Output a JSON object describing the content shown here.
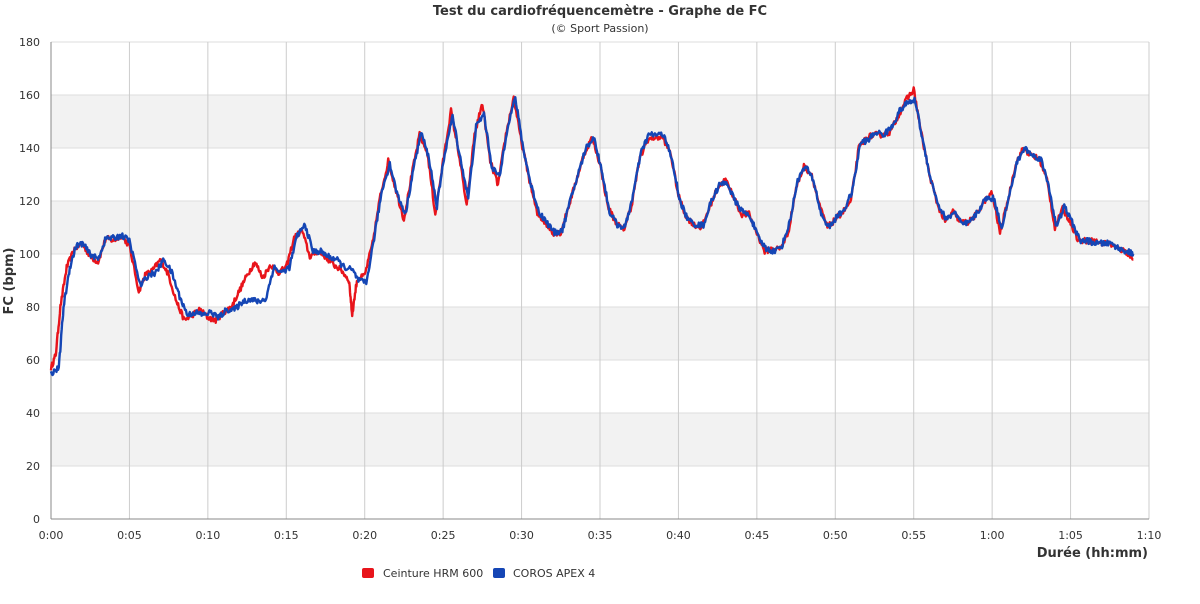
{
  "chart_data": {
    "type": "line",
    "title": "Test du cardiofréquencemètre - Graphe de FC",
    "subtitle": "(© Sport Passion)",
    "xlabel": "Durée (hh:mm)",
    "ylabel": "FC (bpm)",
    "xlim": [
      0,
      70
    ],
    "ylim": [
      0,
      180
    ],
    "x_ticks": [
      0,
      5,
      10,
      15,
      20,
      25,
      30,
      35,
      40,
      45,
      50,
      55,
      60,
      65,
      70
    ],
    "x_tick_labels": [
      "0:00",
      "0:05",
      "0:10",
      "0:15",
      "0:20",
      "0:25",
      "0:30",
      "0:35",
      "0:40",
      "0:45",
      "0:50",
      "0:55",
      "1:00",
      "1:05",
      "1:10"
    ],
    "y_ticks": [
      0,
      20,
      40,
      60,
      80,
      100,
      120,
      140,
      160,
      180
    ],
    "y_tick_labels": [
      "0",
      "20",
      "40",
      "60",
      "80",
      "100",
      "120",
      "140",
      "160",
      "180"
    ],
    "grid": true,
    "legend_position": "bottom-left",
    "series": [
      {
        "name": "Ceinture HRM 600",
        "color": "#e8141b",
        "points": [
          [
            0,
            57
          ],
          [
            0.3,
            62
          ],
          [
            0.6,
            80
          ],
          [
            1,
            95
          ],
          [
            1.5,
            102
          ],
          [
            2,
            104
          ],
          [
            2.5,
            99
          ],
          [
            3,
            97
          ],
          [
            3.5,
            106
          ],
          [
            4,
            105
          ],
          [
            4.5,
            107
          ],
          [
            5,
            103
          ],
          [
            5.6,
            86
          ],
          [
            6,
            92
          ],
          [
            6.5,
            94
          ],
          [
            7,
            98
          ],
          [
            7.5,
            92
          ],
          [
            8,
            82
          ],
          [
            8.5,
            75
          ],
          [
            9,
            77
          ],
          [
            9.5,
            79
          ],
          [
            10,
            76
          ],
          [
            10.5,
            75
          ],
          [
            11,
            78
          ],
          [
            11.5,
            80
          ],
          [
            12,
            86
          ],
          [
            12.5,
            92
          ],
          [
            13,
            97
          ],
          [
            13.5,
            91
          ],
          [
            14,
            96
          ],
          [
            14.5,
            93
          ],
          [
            15,
            95
          ],
          [
            15.5,
            106
          ],
          [
            16,
            109
          ],
          [
            16.5,
            99
          ],
          [
            17,
            101
          ],
          [
            17.5,
            99
          ],
          [
            18,
            96
          ],
          [
            18.5,
            94
          ],
          [
            19,
            90
          ],
          [
            19.2,
            77
          ],
          [
            19.5,
            90
          ],
          [
            20,
            92
          ],
          [
            20.5,
            104
          ],
          [
            21,
            122
          ],
          [
            21.5,
            135
          ],
          [
            22,
            124
          ],
          [
            22.5,
            113
          ],
          [
            23,
            130
          ],
          [
            23.5,
            145
          ],
          [
            24,
            138
          ],
          [
            24.5,
            115
          ],
          [
            25,
            135
          ],
          [
            25.5,
            154
          ],
          [
            26,
            138
          ],
          [
            26.5,
            118
          ],
          [
            27,
            145
          ],
          [
            27.5,
            157
          ],
          [
            28,
            135
          ],
          [
            28.5,
            126
          ],
          [
            29,
            145
          ],
          [
            29.5,
            159
          ],
          [
            30,
            142
          ],
          [
            30.5,
            128
          ],
          [
            31,
            115
          ],
          [
            31.5,
            112
          ],
          [
            32,
            108
          ],
          [
            32.5,
            108
          ],
          [
            33,
            118
          ],
          [
            33.5,
            128
          ],
          [
            34,
            138
          ],
          [
            34.5,
            144
          ],
          [
            35,
            134
          ],
          [
            35.5,
            118
          ],
          [
            36,
            112
          ],
          [
            36.5,
            109
          ],
          [
            37,
            118
          ],
          [
            37.5,
            135
          ],
          [
            38,
            143
          ],
          [
            38.5,
            144
          ],
          [
            39,
            144
          ],
          [
            39.5,
            138
          ],
          [
            40,
            122
          ],
          [
            40.5,
            114
          ],
          [
            41,
            111
          ],
          [
            41.5,
            110
          ],
          [
            42,
            118
          ],
          [
            42.5,
            125
          ],
          [
            43,
            128
          ],
          [
            43.5,
            122
          ],
          [
            44,
            115
          ],
          [
            44.5,
            115
          ],
          [
            45,
            108
          ],
          [
            45.5,
            101
          ],
          [
            46,
            102
          ],
          [
            46.5,
            102
          ],
          [
            47,
            108
          ],
          [
            47.5,
            125
          ],
          [
            48,
            133
          ],
          [
            48.5,
            130
          ],
          [
            49,
            118
          ],
          [
            49.5,
            110
          ],
          [
            50,
            113
          ],
          [
            50.5,
            116
          ],
          [
            51,
            120
          ],
          [
            51.5,
            140
          ],
          [
            52,
            144
          ],
          [
            52.5,
            145
          ],
          [
            53,
            145
          ],
          [
            53.5,
            146
          ],
          [
            54,
            152
          ],
          [
            54.5,
            158
          ],
          [
            55,
            162
          ],
          [
            55.5,
            145
          ],
          [
            56,
            130
          ],
          [
            56.5,
            119
          ],
          [
            57,
            112
          ],
          [
            57.5,
            116
          ],
          [
            58,
            112
          ],
          [
            58.5,
            112
          ],
          [
            59,
            115
          ],
          [
            59.5,
            120
          ],
          [
            60,
            123
          ],
          [
            60.5,
            108
          ],
          [
            61,
            120
          ],
          [
            61.5,
            134
          ],
          [
            62,
            140
          ],
          [
            62.5,
            137
          ],
          [
            63,
            136
          ],
          [
            63.5,
            128
          ],
          [
            64,
            110
          ],
          [
            64.5,
            117
          ],
          [
            65,
            112
          ],
          [
            65.5,
            105
          ],
          [
            66,
            105
          ],
          [
            66.5,
            105
          ],
          [
            67,
            104
          ],
          [
            67.5,
            104
          ],
          [
            68,
            102
          ],
          [
            68.5,
            101
          ],
          [
            69,
            98
          ]
        ]
      },
      {
        "name": "COROS APEX 4",
        "color": "#1546b5",
        "points": [
          [
            0,
            55
          ],
          [
            0.5,
            57
          ],
          [
            0.8,
            80
          ],
          [
            1.2,
            95
          ],
          [
            1.6,
            103
          ],
          [
            2,
            104
          ],
          [
            2.5,
            100
          ],
          [
            3,
            98
          ],
          [
            3.5,
            106
          ],
          [
            4,
            106
          ],
          [
            4.5,
            107
          ],
          [
            5,
            105
          ],
          [
            5.7,
            88
          ],
          [
            6.2,
            92
          ],
          [
            6.7,
            93
          ],
          [
            7.2,
            98
          ],
          [
            7.7,
            93
          ],
          [
            8.2,
            84
          ],
          [
            8.7,
            77
          ],
          [
            9.2,
            78
          ],
          [
            9.7,
            77
          ],
          [
            10.2,
            78
          ],
          [
            10.7,
            76
          ],
          [
            11.2,
            79
          ],
          [
            11.7,
            79
          ],
          [
            12.2,
            82
          ],
          [
            12.7,
            83
          ],
          [
            13.2,
            82
          ],
          [
            13.7,
            83
          ],
          [
            14.2,
            95
          ],
          [
            14.7,
            93
          ],
          [
            15.2,
            95
          ],
          [
            15.7,
            107
          ],
          [
            16.2,
            111
          ],
          [
            16.7,
            101
          ],
          [
            17.2,
            101
          ],
          [
            17.7,
            99
          ],
          [
            18.2,
            98
          ],
          [
            18.7,
            95
          ],
          [
            19.2,
            94
          ],
          [
            19.6,
            90
          ],
          [
            20.1,
            89
          ],
          [
            20.6,
            106
          ],
          [
            21.1,
            124
          ],
          [
            21.6,
            134
          ],
          [
            22.1,
            122
          ],
          [
            22.6,
            115
          ],
          [
            23.1,
            132
          ],
          [
            23.6,
            146
          ],
          [
            24.1,
            136
          ],
          [
            24.6,
            118
          ],
          [
            25.1,
            138
          ],
          [
            25.6,
            152
          ],
          [
            26.1,
            136
          ],
          [
            26.6,
            121
          ],
          [
            27.1,
            148
          ],
          [
            27.6,
            153
          ],
          [
            28.1,
            133
          ],
          [
            28.6,
            129
          ],
          [
            29.1,
            148
          ],
          [
            29.6,
            159
          ],
          [
            30.1,
            140
          ],
          [
            30.6,
            126
          ],
          [
            31.1,
            116
          ],
          [
            31.6,
            112
          ],
          [
            32.1,
            108
          ],
          [
            32.6,
            109
          ],
          [
            33.1,
            120
          ],
          [
            33.6,
            130
          ],
          [
            34.1,
            140
          ],
          [
            34.6,
            144
          ],
          [
            35.1,
            132
          ],
          [
            35.6,
            116
          ],
          [
            36.1,
            111
          ],
          [
            36.6,
            110
          ],
          [
            37.1,
            122
          ],
          [
            37.6,
            138
          ],
          [
            38.1,
            145
          ],
          [
            38.6,
            145
          ],
          [
            39.1,
            145
          ],
          [
            39.6,
            135
          ],
          [
            40.1,
            120
          ],
          [
            40.6,
            113
          ],
          [
            41.1,
            111
          ],
          [
            41.6,
            111
          ],
          [
            42.1,
            120
          ],
          [
            42.6,
            126
          ],
          [
            43.1,
            127
          ],
          [
            43.6,
            120
          ],
          [
            44.1,
            116
          ],
          [
            44.6,
            114
          ],
          [
            45.1,
            106
          ],
          [
            45.6,
            102
          ],
          [
            46.1,
            101
          ],
          [
            46.6,
            103
          ],
          [
            47.1,
            112
          ],
          [
            47.6,
            128
          ],
          [
            48.1,
            133
          ],
          [
            48.6,
            128
          ],
          [
            49.1,
            115
          ],
          [
            49.6,
            110
          ],
          [
            50.1,
            114
          ],
          [
            50.6,
            117
          ],
          [
            51.1,
            124
          ],
          [
            51.6,
            142
          ],
          [
            52.1,
            143
          ],
          [
            52.6,
            146
          ],
          [
            53.1,
            145
          ],
          [
            53.6,
            148
          ],
          [
            54.1,
            154
          ],
          [
            54.6,
            157
          ],
          [
            55.1,
            158
          ],
          [
            55.6,
            142
          ],
          [
            56.1,
            128
          ],
          [
            56.6,
            118
          ],
          [
            57.1,
            113
          ],
          [
            57.6,
            116
          ],
          [
            58.1,
            111
          ],
          [
            58.6,
            112
          ],
          [
            59.1,
            116
          ],
          [
            59.6,
            121
          ],
          [
            60.1,
            121
          ],
          [
            60.6,
            110
          ],
          [
            61.1,
            122
          ],
          [
            61.6,
            135
          ],
          [
            62.1,
            140
          ],
          [
            62.6,
            137
          ],
          [
            63.1,
            136
          ],
          [
            63.6,
            126
          ],
          [
            64.1,
            110
          ],
          [
            64.6,
            118
          ],
          [
            65.1,
            112
          ],
          [
            65.6,
            105
          ],
          [
            66.1,
            105
          ],
          [
            66.6,
            104
          ],
          [
            67.1,
            104
          ],
          [
            67.6,
            104
          ],
          [
            68.1,
            102
          ],
          [
            68.6,
            101
          ],
          [
            69,
            100
          ]
        ]
      }
    ]
  }
}
